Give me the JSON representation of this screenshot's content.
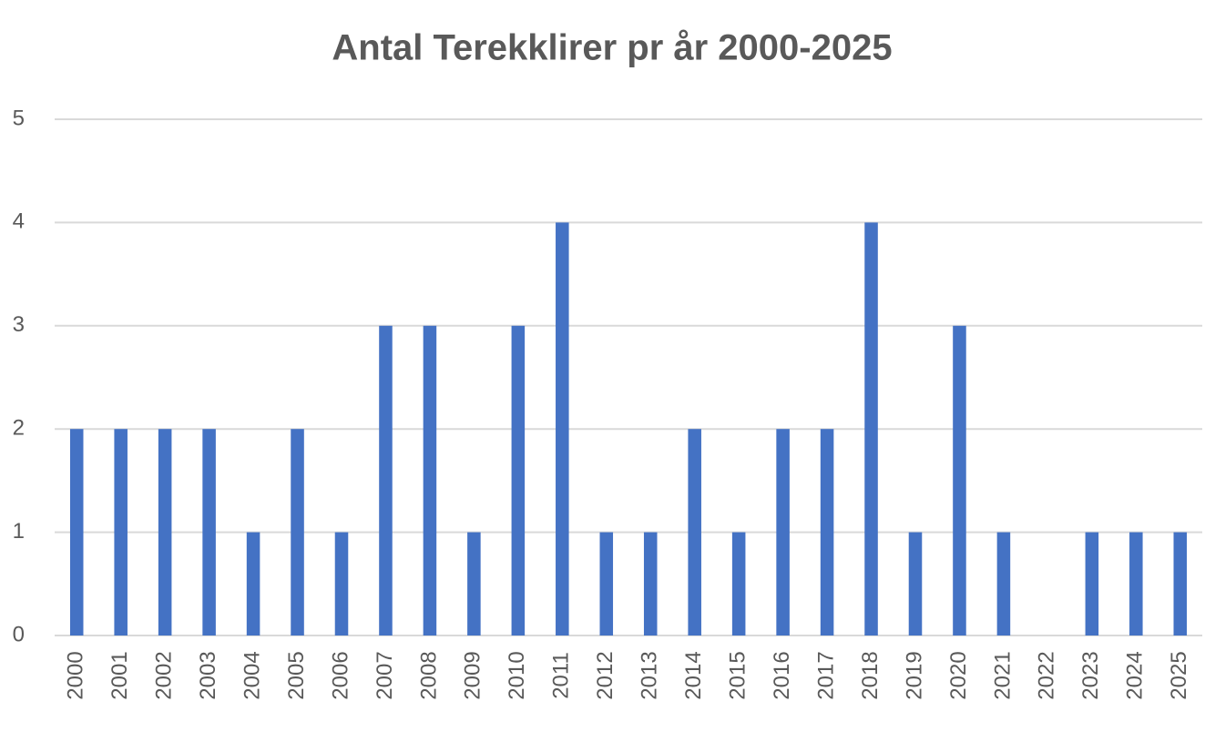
{
  "chart_data": {
    "type": "bar",
    "title": "Antal Terekklirer pr år 2000-2025",
    "categories": [
      "2000",
      "2001",
      "2002",
      "2003",
      "2004",
      "2005",
      "2006",
      "2007",
      "2008",
      "2009",
      "2010",
      "2011",
      "2012",
      "2013",
      "2014",
      "2015",
      "2016",
      "2017",
      "2018",
      "2019",
      "2020",
      "2021",
      "2022",
      "2023",
      "2024",
      "2025"
    ],
    "values": [
      2,
      2,
      2,
      2,
      1,
      2,
      1,
      3,
      3,
      1,
      3,
      4,
      1,
      1,
      2,
      1,
      2,
      2,
      4,
      1,
      3,
      1,
      0,
      1,
      1,
      1
    ],
    "color": "#4472c4",
    "ylim": [
      0,
      5
    ],
    "yticks": [
      0,
      1,
      2,
      3,
      4,
      5
    ],
    "grid": true
  }
}
